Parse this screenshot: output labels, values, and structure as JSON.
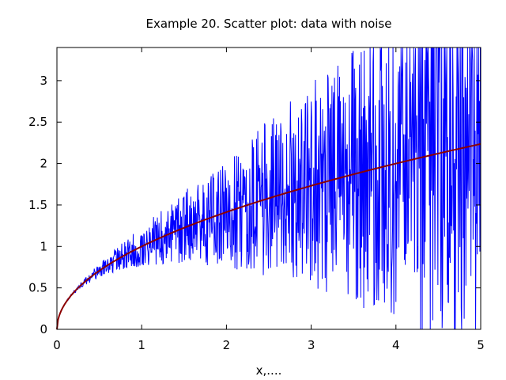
{
  "chart_data": {
    "type": "line",
    "title": "Example 20. Scatter plot: data with noise",
    "xlabel": "x,....",
    "ylabel": "",
    "xlim": [
      0,
      5
    ],
    "ylim": [
      0,
      3.4
    ],
    "grid": false,
    "legend": "none",
    "x_ticks": [
      {
        "value": 0,
        "label": "0"
      },
      {
        "value": 1,
        "label": "1"
      },
      {
        "value": 2,
        "label": "2"
      },
      {
        "value": 3,
        "label": "3"
      },
      {
        "value": 4,
        "label": "4"
      },
      {
        "value": 5,
        "label": "5"
      }
    ],
    "y_ticks": [
      {
        "value": 0,
        "label": "0"
      },
      {
        "value": 0.5,
        "label": "0.5"
      },
      {
        "value": 1,
        "label": "1"
      },
      {
        "value": 1.5,
        "label": "1.5"
      },
      {
        "value": 2,
        "label": "2"
      },
      {
        "value": 2.5,
        "label": "2.5"
      },
      {
        "value": 3,
        "label": "3"
      }
    ],
    "series": [
      {
        "name": "data with noise",
        "color": "#0000ff",
        "kind": "noisy-line",
        "base": "sqrt(x)",
        "noise_amplitude": "0.12*x^1.5",
        "n_points": 1000,
        "x_range": [
          0,
          5
        ]
      },
      {
        "name": "sqrt(x)",
        "color": "#8b0000",
        "kind": "smooth-line",
        "function": "sqrt(x)",
        "x": [
          0,
          0.05,
          0.1,
          0.25,
          0.5,
          1,
          1.5,
          2,
          2.5,
          3,
          3.5,
          4,
          4.5,
          5
        ],
        "y": [
          0,
          0.224,
          0.316,
          0.5,
          0.707,
          1,
          1.225,
          1.414,
          1.581,
          1.732,
          1.871,
          2,
          2.121,
          2.236
        ]
      }
    ]
  }
}
